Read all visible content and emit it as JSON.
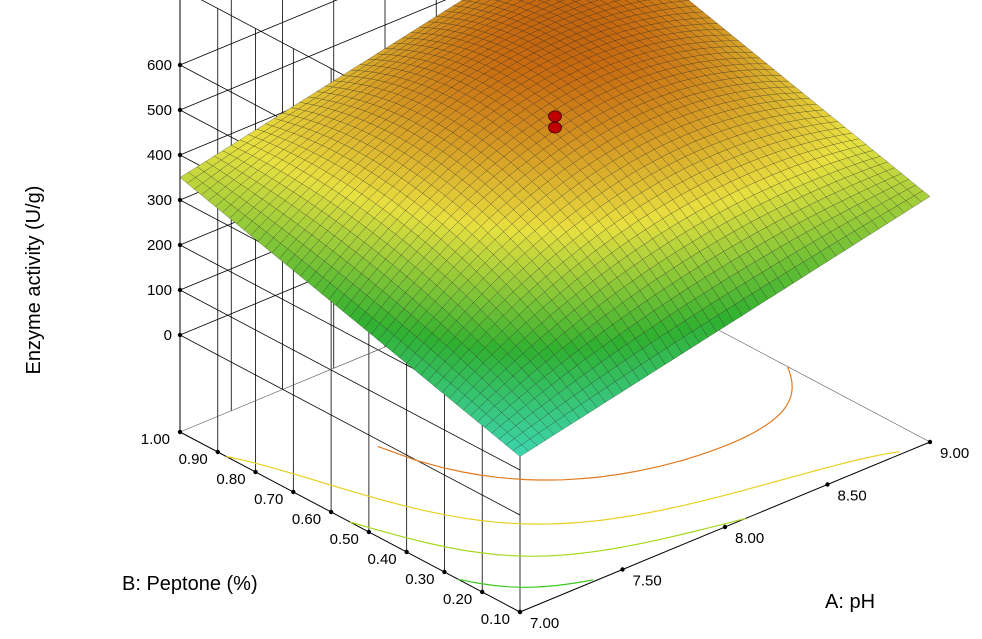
{
  "chart_data": {
    "type": "surface",
    "title": "",
    "xlabel": "A: pH",
    "ylabel": "B: Peptone (%)",
    "zlabel": "Enzyme activity (U/g)",
    "xlim": [
      7.0,
      9.0
    ],
    "ylim": [
      0.1,
      1.0
    ],
    "zlim": [
      0,
      600
    ],
    "x_ticks": [
      "7.00",
      "7.50",
      "8.00",
      "8.50",
      "9.00"
    ],
    "y_ticks": [
      "0.10",
      "0.20",
      "0.30",
      "0.40",
      "0.50",
      "0.60",
      "0.70",
      "0.80",
      "0.90",
      "1.00"
    ],
    "z_ticks": [
      "0",
      "100",
      "200",
      "300",
      "400",
      "500",
      "600"
    ],
    "surface_corners": [
      {
        "pH": 7.0,
        "peptone": 0.1,
        "activity": 130
      },
      {
        "pH": 9.0,
        "peptone": 0.1,
        "activity": 330
      },
      {
        "pH": 7.0,
        "peptone": 1.0,
        "activity": 350
      },
      {
        "pH": 9.0,
        "peptone": 1.0,
        "activity": 545
      }
    ],
    "design_points": [
      {
        "pH": 8.0,
        "peptone": 0.55,
        "activity": 497
      },
      {
        "pH": 8.0,
        "peptone": 0.55,
        "activity": 472
      }
    ],
    "contour_lines": [
      {
        "level": 420,
        "color": "#e07a20"
      },
      {
        "level": 320,
        "color": "#e8d020"
      },
      {
        "level": 240,
        "color": "#a8d820"
      },
      {
        "level": 170,
        "color": "#40c820"
      }
    ],
    "grid": true,
    "colormap": [
      "#40e0d0",
      "#30b030",
      "#e8e040",
      "#c86a10",
      "#3a0a00"
    ]
  }
}
